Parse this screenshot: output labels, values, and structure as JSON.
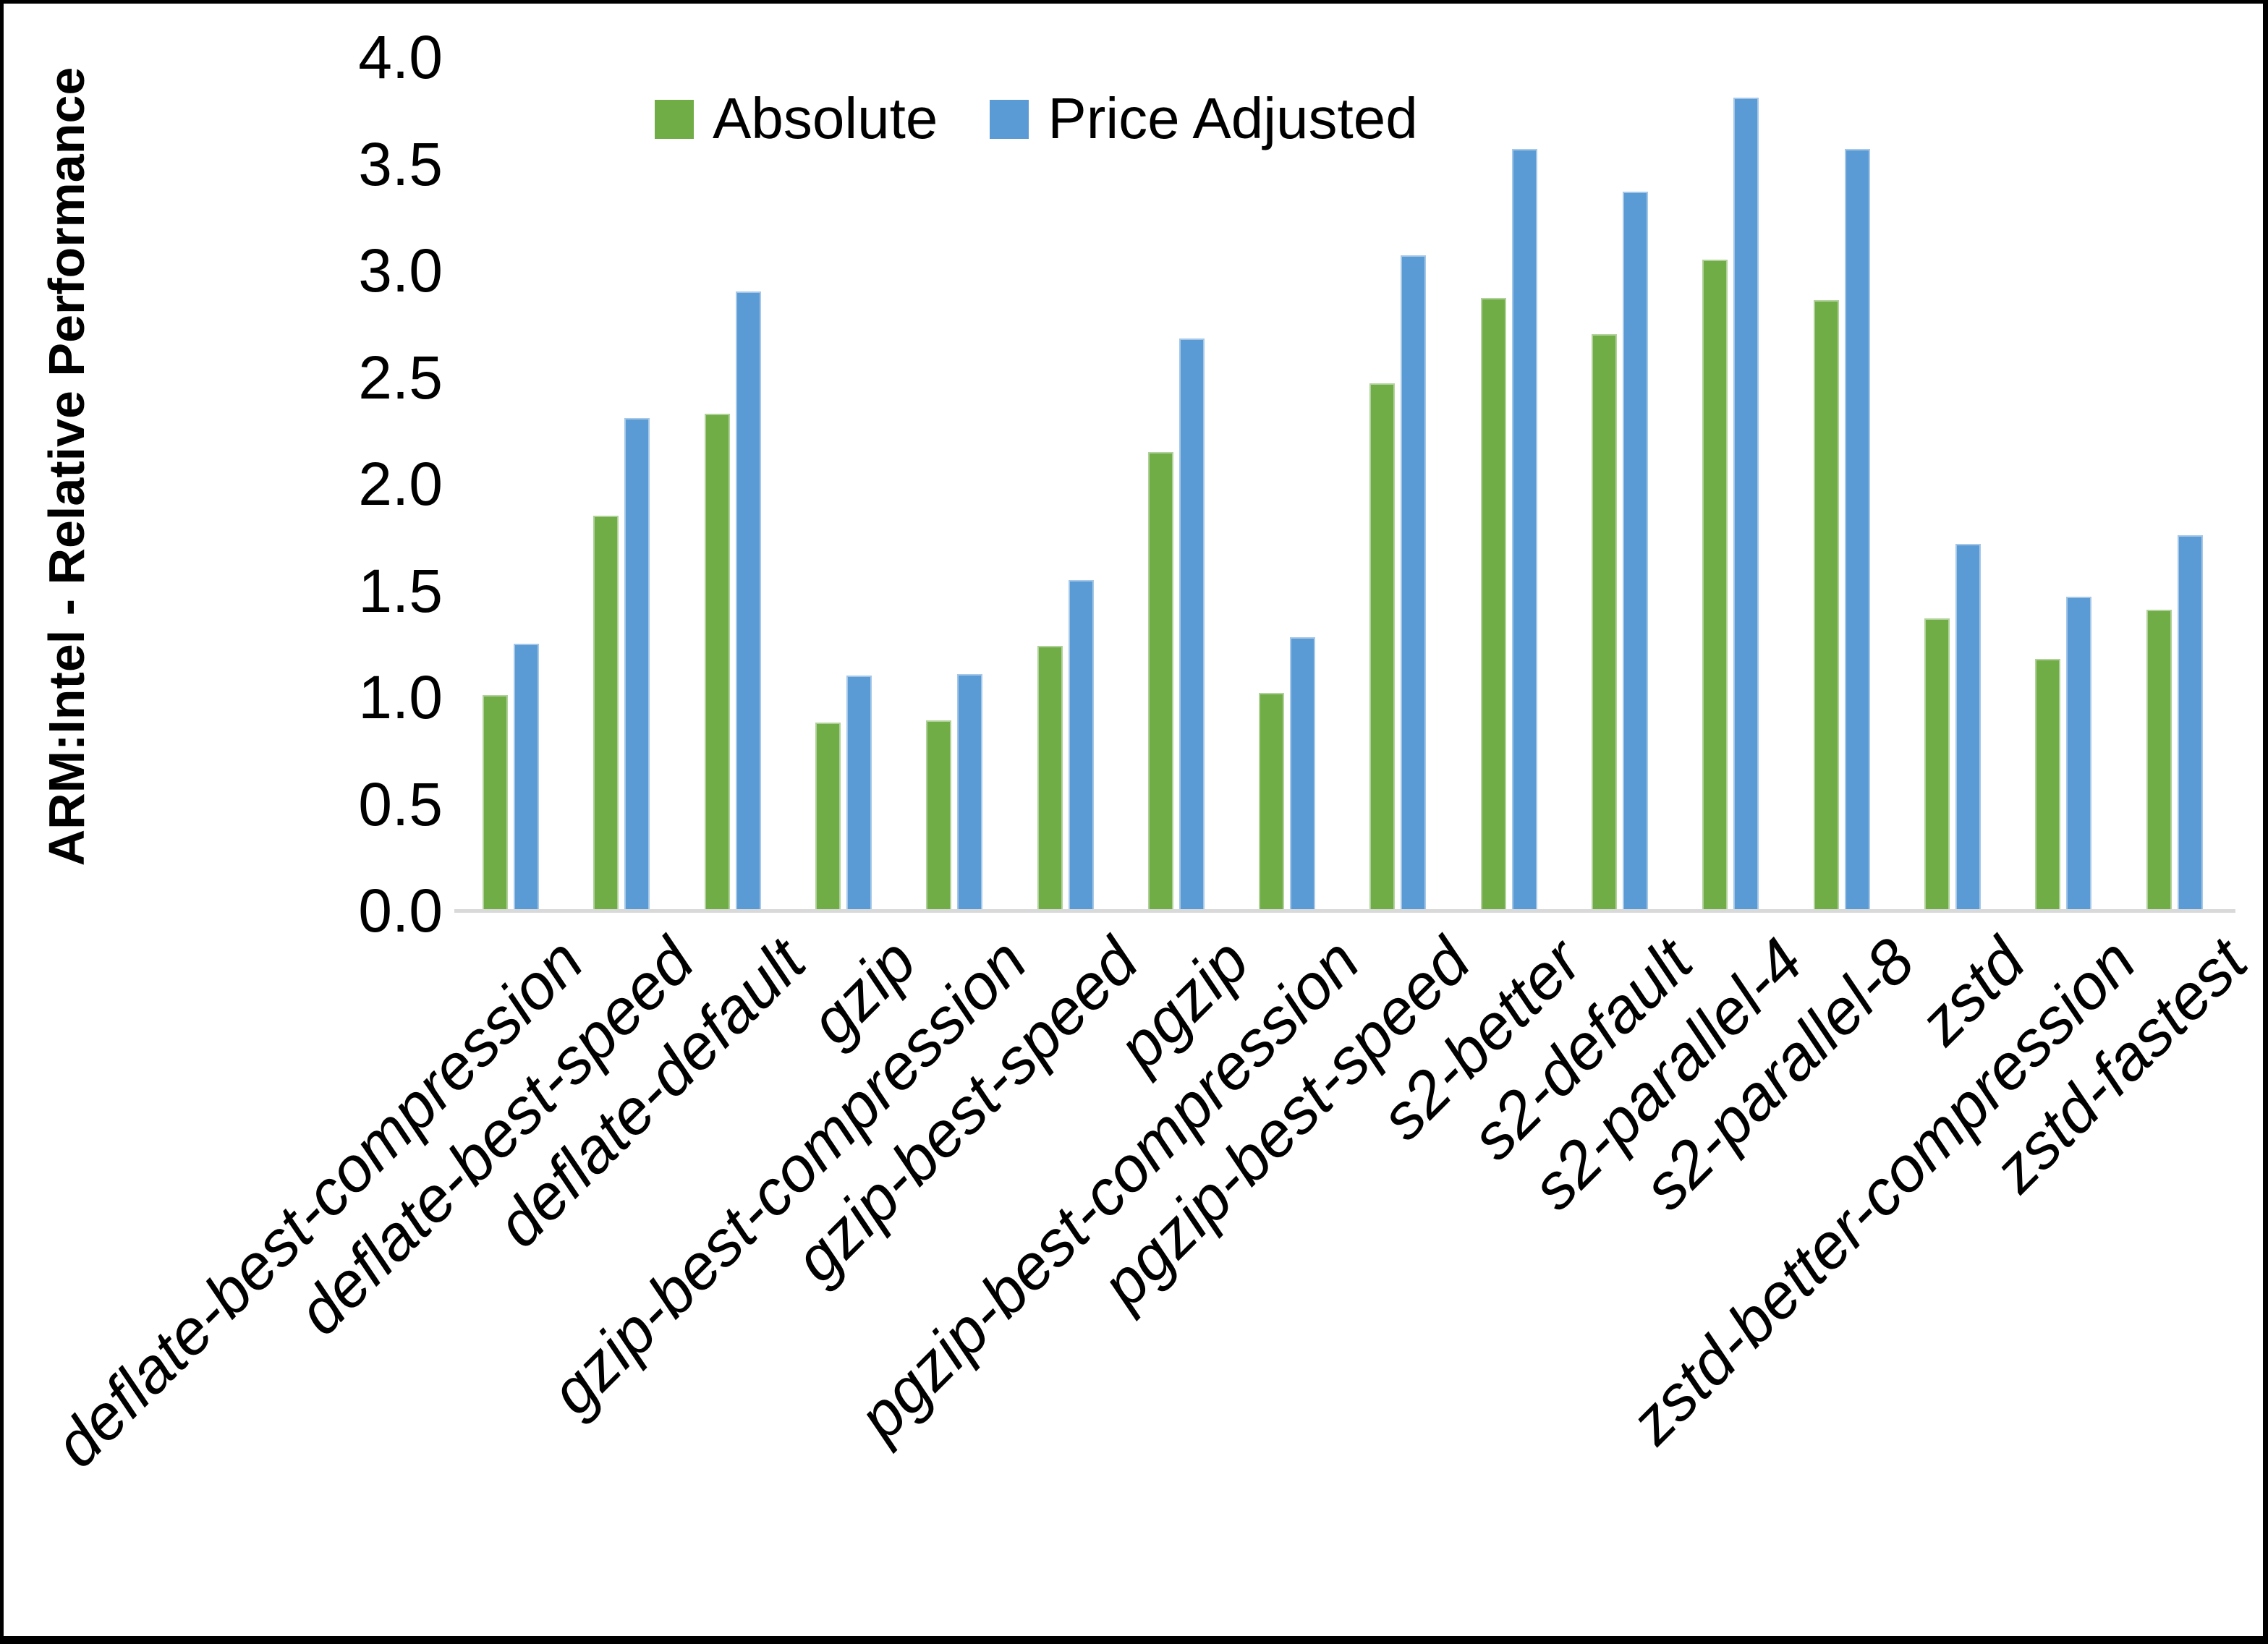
{
  "chart_data": {
    "type": "bar",
    "title": "",
    "ylabel": "ARM:Intel - Relative Performance",
    "xlabel": "",
    "ylim": [
      0.0,
      4.0
    ],
    "ytick_step": 0.5,
    "yticks": [
      "0.0",
      "0.5",
      "1.0",
      "1.5",
      "2.0",
      "2.5",
      "3.0",
      "3.5",
      "4.0"
    ],
    "grid": false,
    "legend_position": "top-center",
    "background_color": "#FFFFFF",
    "axis_line_color": "#D9D9D9",
    "text_color": "#000000",
    "frame_border_color": "#000000",
    "categories": [
      "deflate-best-compression",
      "deflate-best-speed",
      "deflate-default",
      "gzip",
      "gzip-best-compression",
      "gzip-best-speed",
      "pgzip",
      "pgzip-best-compression",
      "pgzip-best-speed",
      "s2-better",
      "s2-default",
      "s2-parallel-4",
      "s2-parallel-8",
      "zstd",
      "zstd-better-compression",
      "zstd-fastest"
    ],
    "series": [
      {
        "name": "Absolute",
        "color": "#70AD47",
        "values": [
          1.01,
          1.85,
          2.33,
          0.88,
          0.89,
          1.24,
          2.15,
          1.02,
          2.47,
          2.87,
          2.7,
          3.05,
          2.86,
          1.37,
          1.18,
          1.41
        ]
      },
      {
        "name": "Price Adjusted",
        "color": "#5B9BD5",
        "values": [
          1.25,
          2.31,
          2.9,
          1.1,
          1.11,
          1.55,
          2.68,
          1.28,
          3.07,
          3.57,
          3.37,
          3.81,
          3.57,
          1.72,
          1.47,
          1.76
        ]
      }
    ]
  }
}
